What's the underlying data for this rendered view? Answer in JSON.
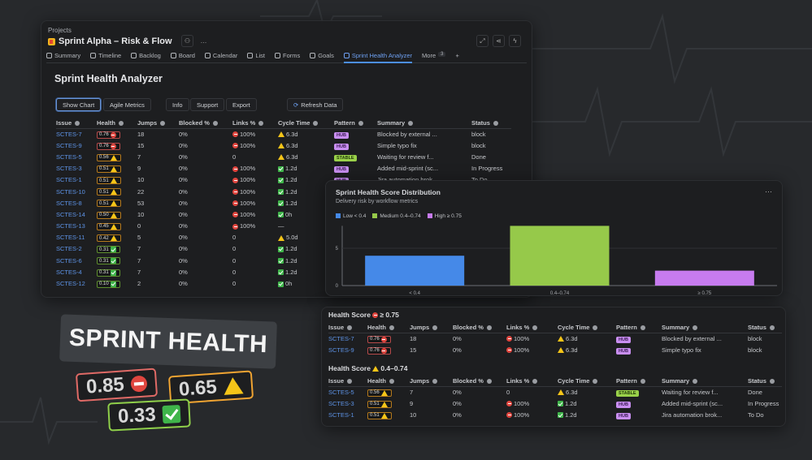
{
  "header": {
    "breadcrumb": "Projects",
    "project_title": "Sprint Alpha – Risk & Flow",
    "more_icon": "…"
  },
  "tabs": [
    {
      "label": "Summary"
    },
    {
      "label": "Timeline"
    },
    {
      "label": "Backlog"
    },
    {
      "label": "Board"
    },
    {
      "label": "Calendar"
    },
    {
      "label": "List"
    },
    {
      "label": "Forms"
    },
    {
      "label": "Goals"
    },
    {
      "label": "Sprint Health Analyzer",
      "active": true
    },
    {
      "label": "More",
      "count": "3"
    },
    {
      "label": "+"
    }
  ],
  "page": {
    "title": "Sprint Health Analyzer"
  },
  "toolbar": {
    "show_chart": "Show Chart",
    "agile_metrics": "Agile Metrics",
    "info": "Info",
    "support": "Support",
    "export": "Export",
    "refresh": "Refresh Data"
  },
  "columns": [
    "Issue",
    "Health",
    "Jumps",
    "Blocked %",
    "Links %",
    "Cycle Time",
    "Pattern",
    "Summary",
    "Status"
  ],
  "issues": [
    {
      "id": "SCTES-7",
      "health": "0.76",
      "level": "r",
      "jumps": "18",
      "blocked": "0%",
      "links": "100%",
      "links_icon": "stop",
      "cycle": "6.3d",
      "cycle_icon": "warn",
      "pattern": "HUB",
      "summary": "Blocked by external ...",
      "status": "block"
    },
    {
      "id": "SCTES-9",
      "health": "0.76",
      "level": "r",
      "jumps": "15",
      "blocked": "0%",
      "links": "100%",
      "links_icon": "stop",
      "cycle": "6.3d",
      "cycle_icon": "warn",
      "pattern": "HUB",
      "summary": "Simple typo fix",
      "status": "block"
    },
    {
      "id": "SCTES-5",
      "health": "0.56",
      "level": "o",
      "jumps": "7",
      "blocked": "0%",
      "links": "0",
      "links_icon": "",
      "cycle": "6.3d",
      "cycle_icon": "warn",
      "pattern": "STABLE",
      "summary": "Waiting for review f...",
      "status": "Done"
    },
    {
      "id": "SCTES-3",
      "health": "0.51",
      "level": "o",
      "jumps": "9",
      "blocked": "0%",
      "links": "100%",
      "links_icon": "stop",
      "cycle": "1.2d",
      "cycle_icon": "check",
      "pattern": "HUB",
      "summary": "Added mid-sprint (sc...",
      "status": "In Progress"
    },
    {
      "id": "SCTES-1",
      "health": "0.51",
      "level": "o",
      "jumps": "10",
      "blocked": "0%",
      "links": "100%",
      "links_icon": "stop",
      "cycle": "1.2d",
      "cycle_icon": "check",
      "pattern": "HUB",
      "summary": "Jira automation brok...",
      "status": "To Do"
    },
    {
      "id": "SCTES-10",
      "health": "0.51",
      "level": "o",
      "jumps": "22",
      "blocked": "0%",
      "links": "100%",
      "links_icon": "stop",
      "cycle": "1.2d",
      "cycle_icon": "check"
    },
    {
      "id": "SCTES-8",
      "health": "0.51",
      "level": "o",
      "jumps": "53",
      "blocked": "0%",
      "links": "100%",
      "links_icon": "stop",
      "cycle": "1.2d",
      "cycle_icon": "check"
    },
    {
      "id": "SCTES-14",
      "health": "0.50",
      "level": "o",
      "jumps": "10",
      "blocked": "0%",
      "links": "100%",
      "links_icon": "stop",
      "cycle": "0h",
      "cycle_icon": "check"
    },
    {
      "id": "SCTES-13",
      "health": "0.45",
      "level": "o",
      "jumps": "0",
      "blocked": "0%",
      "links": "100%",
      "links_icon": "stop",
      "cycle": "—",
      "cycle_icon": ""
    },
    {
      "id": "SCTES-11",
      "health": "0.42",
      "level": "o",
      "jumps": "5",
      "blocked": "0%",
      "links": "0",
      "links_icon": "",
      "cycle": "5.0d",
      "cycle_icon": "warn"
    },
    {
      "id": "SCTES-2",
      "health": "0.31",
      "level": "g",
      "jumps": "7",
      "blocked": "0%",
      "links": "0",
      "links_icon": "",
      "cycle": "1.2d",
      "cycle_icon": "check"
    },
    {
      "id": "SCTES-6",
      "health": "0.31",
      "level": "g",
      "jumps": "7",
      "blocked": "0%",
      "links": "0",
      "links_icon": "",
      "cycle": "1.2d",
      "cycle_icon": "check"
    },
    {
      "id": "SCTES-4",
      "health": "0.31",
      "level": "g",
      "jumps": "7",
      "blocked": "0%",
      "links": "0",
      "links_icon": "",
      "cycle": "1.2d",
      "cycle_icon": "check"
    },
    {
      "id": "SCTES-12",
      "health": "0.10",
      "level": "g",
      "jumps": "2",
      "blocked": "0%",
      "links": "0",
      "links_icon": "",
      "cycle": "0h",
      "cycle_icon": "check"
    }
  ],
  "chart_data": {
    "type": "bar",
    "title": "Sprint Health Score Distribution",
    "subtitle": "Delivery risk by workflow metrics",
    "categories": [
      "< 0.4",
      "0.4–0.74",
      "≥ 0.75"
    ],
    "values": [
      4,
      8,
      2
    ],
    "colors": [
      "#4589e8",
      "#96c94a",
      "#c77bef"
    ],
    "legend": [
      "Low < 0.4",
      "Medium 0.4–0.74",
      "High ≥ 0.75"
    ],
    "yticks": [
      0,
      5
    ],
    "ylim": [
      0,
      8
    ],
    "grid": true,
    "legend_position": "top-left",
    "menu": "···"
  },
  "sections": [
    {
      "title": "Health Score",
      "icon": "stop",
      "range": "≥ 0.75",
      "rows": [
        0,
        1
      ]
    },
    {
      "title": "Health Score",
      "icon": "warn",
      "range": "0.4–0.74",
      "rows": [
        2,
        3,
        4
      ]
    }
  ],
  "promo": {
    "banner": "SPRINT HEALTH",
    "badges": [
      {
        "value": "0.85",
        "icon": "stop",
        "color": "#e06a66"
      },
      {
        "value": "0.65",
        "icon": "warn",
        "color": "#f0a432"
      },
      {
        "value": "0.33",
        "icon": "check",
        "color": "#8fcf4a"
      }
    ]
  }
}
